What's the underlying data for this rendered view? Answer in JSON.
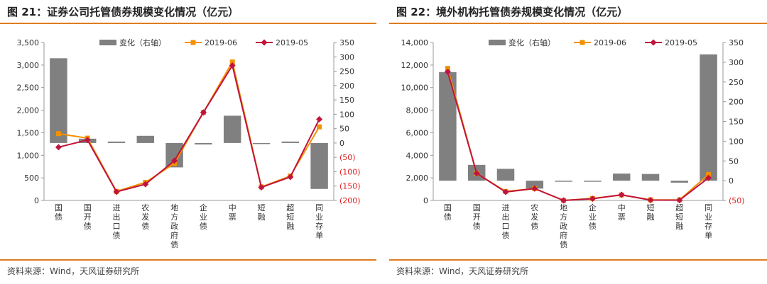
{
  "panels": [
    {
      "title": "图 21：证券公司托管债券规模变化情况（亿元）",
      "source": "资料来源：Wind，天风证券研究所",
      "chart_data": {
        "type": "bar",
        "categories": [
          "国债",
          "国开债",
          "进出口债",
          "农发债",
          "地方政府债",
          "企业债",
          "中票",
          "短融",
          "超短融",
          "同业存单"
        ],
        "series": [
          {
            "name": "变化（右轴）",
            "type": "bar",
            "axis": "right",
            "color": "#808080",
            "values": [
              295,
              15,
              5,
              25,
              -85,
              -5,
              95,
              0,
              5,
              -160
            ]
          },
          {
            "name": "2019-06",
            "type": "line",
            "axis": "left",
            "color": "#f39200",
            "marker": "square",
            "values": [
              1480,
              1380,
              200,
              400,
              820,
              1950,
              3070,
              300,
              540,
              1630
            ]
          },
          {
            "name": "2019-05",
            "type": "line",
            "axis": "left",
            "color": "#c0143c",
            "marker": "diamond",
            "values": [
              1180,
              1340,
              190,
              360,
              880,
              1950,
              2990,
              290,
              520,
              1800
            ]
          }
        ],
        "ylim_left": [
          0,
          3500
        ],
        "ylim_right": [
          -200,
          350
        ],
        "yticks_left": [
          "0",
          "500",
          "1,000",
          "1,500",
          "2,000",
          "2,500",
          "3,000",
          "3,500"
        ],
        "yticks_right": [
          "(200)",
          "(150)",
          "(100)",
          "(50)",
          "0",
          "50",
          "100",
          "150",
          "200",
          "250",
          "300",
          "350"
        ],
        "legend_position": "top",
        "negative_tick_color": "#e02020"
      }
    },
    {
      "title": "图 22：境外机构托管债券规模变化情况（亿元）",
      "source": "资料来源：Wind，天风证券研究所",
      "chart_data": {
        "type": "bar",
        "categories": [
          "国债",
          "国开债",
          "进出口债",
          "农发债",
          "地方政府债",
          "企业债",
          "中票",
          "短融",
          "超短融",
          "同业存单"
        ],
        "series": [
          {
            "name": "变化（右轴）",
            "type": "bar",
            "axis": "right",
            "color": "#808080",
            "values": [
              275,
              40,
              30,
              -20,
              0,
              -2,
              18,
              17,
              -5,
              320
            ]
          },
          {
            "name": "2019-06",
            "type": "line",
            "axis": "left",
            "color": "#f39200",
            "marker": "square",
            "values": [
              11700,
              2400,
              800,
              1050,
              0,
              180,
              480,
              50,
              50,
              2300
            ]
          },
          {
            "name": "2019-05",
            "type": "line",
            "axis": "left",
            "color": "#c0143c",
            "marker": "diamond",
            "values": [
              11400,
              2400,
              750,
              1050,
              0,
              150,
              500,
              30,
              20,
              2000
            ]
          }
        ],
        "ylim_left": [
          0,
          14000
        ],
        "ylim_right": [
          -50,
          350
        ],
        "yticks_left": [
          "0",
          "2,000",
          "4,000",
          "6,000",
          "8,000",
          "10,000",
          "12,000",
          "14,000"
        ],
        "yticks_right": [
          "(50)",
          "0",
          "50",
          "100",
          "150",
          "200",
          "250",
          "300",
          "350"
        ],
        "legend_position": "top",
        "negative_tick_color": "#e02020"
      }
    }
  ]
}
